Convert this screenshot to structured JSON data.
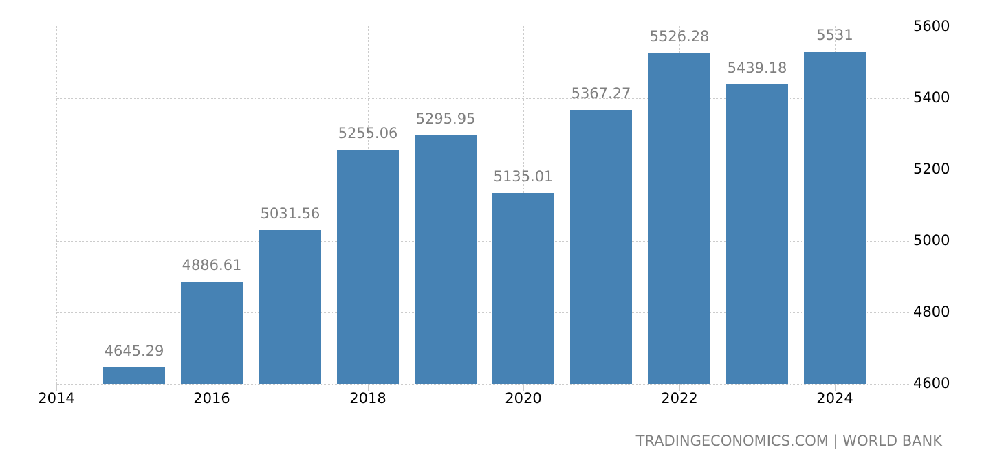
{
  "chart_data": {
    "type": "bar",
    "title": "",
    "xlabel": "",
    "ylabel": "",
    "categories": [
      "2015",
      "2016",
      "2017",
      "2018",
      "2019",
      "2020",
      "2021",
      "2022",
      "2023",
      "2024"
    ],
    "values": [
      4645.29,
      4886.61,
      5031.56,
      5255.06,
      5295.95,
      5135.01,
      5367.27,
      5526.28,
      5439.18,
      5531
    ],
    "value_labels": [
      "4645.29",
      "4886.61",
      "5031.56",
      "5255.06",
      "5295.95",
      "5135.01",
      "5367.27",
      "5526.28",
      "5439.18",
      "5531"
    ],
    "ylim": [
      4600,
      5600
    ],
    "y_ticks": [
      "5600",
      "5400",
      "5200",
      "5000",
      "4800",
      "4600"
    ],
    "y_axis_position": "right",
    "x_ticks": [
      "2014",
      "2016",
      "2018",
      "2020",
      "2022",
      "2024"
    ],
    "grid": true,
    "legend": null,
    "bar_color": "#4682b4"
  },
  "footer": {
    "source": "TRADINGECONOMICS.COM | WORLD BANK"
  }
}
